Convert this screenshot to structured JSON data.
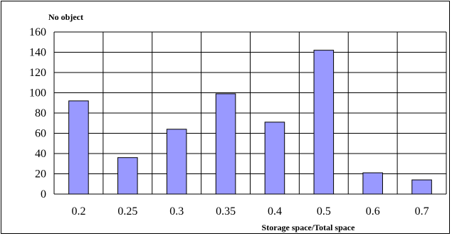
{
  "chart_data": {
    "type": "bar",
    "ylabel": "No object",
    "xlabel": "Storage space/Total space",
    "categories": [
      "0.2",
      "0.25",
      "0.3",
      "0.35",
      "0.4",
      "0.5",
      "0.6",
      "0.7"
    ],
    "values": [
      92,
      36,
      64,
      99,
      71,
      142,
      21,
      14
    ],
    "ylim": [
      0,
      160
    ],
    "yticks": [
      "0",
      "20",
      "40",
      "60",
      "80",
      "100",
      "120",
      "140",
      "160"
    ],
    "grid": true,
    "legend": "none",
    "colors": {
      "bar": "#9999ff",
      "bar_stroke": "#000000",
      "grid": "#000000"
    }
  }
}
